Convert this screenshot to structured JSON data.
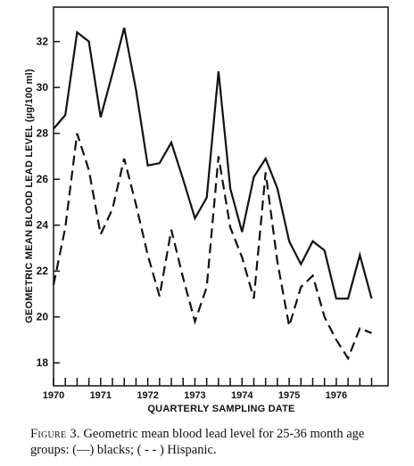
{
  "chart_data": {
    "type": "line",
    "ylabel": "GEOMETRIC MEAN BLOOD LEAD LEVEL (µg/100 ml)",
    "xlabel": "QUARTERLY SAMPLING DATE",
    "ylim": [
      17,
      33.5
    ],
    "xlim": [
      1970,
      1977.1
    ],
    "yticks": [
      18,
      20,
      22,
      24,
      26,
      28,
      30,
      32
    ],
    "xticks": [
      1970,
      1971,
      1972,
      1973,
      1974,
      1975,
      1976
    ],
    "grid": false,
    "series": [
      {
        "name": "blacks",
        "style": "solid",
        "x": [
          1970.0,
          1970.25,
          1970.5,
          1970.75,
          1971.0,
          1971.25,
          1971.5,
          1971.75,
          1972.0,
          1972.25,
          1972.5,
          1972.75,
          1973.0,
          1973.25,
          1973.5,
          1973.75,
          1974.0,
          1974.25,
          1974.5,
          1974.75,
          1975.0,
          1975.25,
          1975.5,
          1975.75,
          1976.0,
          1976.25,
          1976.5,
          1976.75
        ],
        "values": [
          28.2,
          28.8,
          32.4,
          32.0,
          28.7,
          30.6,
          32.6,
          29.9,
          26.6,
          26.7,
          27.6,
          26.0,
          24.3,
          25.2,
          30.7,
          25.6,
          23.7,
          26.1,
          26.9,
          25.6,
          23.3,
          22.3,
          23.3,
          22.9,
          20.8,
          20.8,
          22.7,
          20.8
        ]
      },
      {
        "name": "Hispanic",
        "style": "dashed",
        "x": [
          1970.0,
          1970.25,
          1970.5,
          1970.75,
          1971.0,
          1971.25,
          1971.5,
          1971.75,
          1972.0,
          1972.25,
          1972.5,
          1972.75,
          1973.0,
          1973.25,
          1973.5,
          1973.75,
          1974.0,
          1974.25,
          1974.5,
          1974.75,
          1975.0,
          1975.25,
          1975.5,
          1975.75,
          1976.0,
          1976.25,
          1976.5,
          1976.75
        ],
        "values": [
          21.4,
          23.9,
          28.0,
          26.4,
          23.6,
          24.7,
          26.9,
          24.9,
          22.7,
          20.9,
          23.8,
          21.7,
          19.8,
          21.3,
          27.0,
          23.9,
          22.6,
          20.8,
          26.3,
          22.4,
          19.6,
          21.3,
          21.8,
          20.0,
          19.0,
          18.2,
          19.5,
          19.3
        ]
      }
    ]
  },
  "caption": {
    "lead": "Figure 3.",
    "text": " Geometric mean blood lead level for 25-36 month age groups: (—) blacks; ( - - ) Hispanic."
  }
}
